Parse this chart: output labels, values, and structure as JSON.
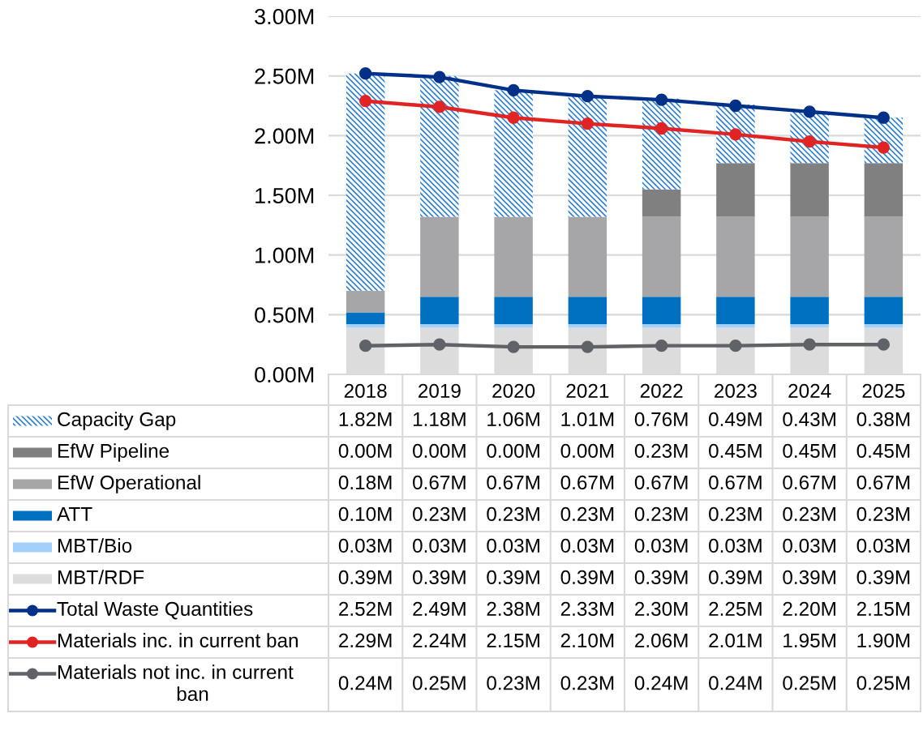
{
  "chart_data": {
    "type": "bar",
    "stacked": true,
    "categories": [
      "2018",
      "2019",
      "2020",
      "2021",
      "2022",
      "2023",
      "2024",
      "2025"
    ],
    "ylim": [
      0,
      3
    ],
    "yticks": [
      {
        "value": 0,
        "label": "0.00M"
      },
      {
        "value": 0.5,
        "label": "0.50M"
      },
      {
        "value": 1,
        "label": "1.00M"
      },
      {
        "value": 1.5,
        "label": "1.50M"
      },
      {
        "value": 2,
        "label": "2.00M"
      },
      {
        "value": 2.5,
        "label": "2.50M"
      },
      {
        "value": 3,
        "label": "3.00M"
      }
    ],
    "grid": "y",
    "legend": "bottom",
    "marker": "circle",
    "line_style": "solid",
    "series": [
      {
        "name": "MBT/RDF",
        "color": "#dcdcdc",
        "values": [
          0.39,
          0.39,
          0.39,
          0.39,
          0.39,
          0.39,
          0.39,
          0.39
        ],
        "value_labels": [
          "0.39M",
          "0.39M",
          "0.39M",
          "0.39M",
          "0.39M",
          "0.39M",
          "0.39M",
          "0.39M"
        ]
      },
      {
        "name": "MBT/Bio",
        "color": "#a2d0fb",
        "values": [
          0.03,
          0.03,
          0.03,
          0.03,
          0.03,
          0.03,
          0.03,
          0.03
        ],
        "value_labels": [
          "0.03M",
          "0.03M",
          "0.03M",
          "0.03M",
          "0.03M",
          "0.03M",
          "0.03M",
          "0.03M"
        ]
      },
      {
        "name": "ATT",
        "color": "#0070c0",
        "values": [
          0.1,
          0.23,
          0.23,
          0.23,
          0.23,
          0.23,
          0.23,
          0.23
        ],
        "value_labels": [
          "0.10M",
          "0.23M",
          "0.23M",
          "0.23M",
          "0.23M",
          "0.23M",
          "0.23M",
          "0.23M"
        ]
      },
      {
        "name": "EfW Operational",
        "color": "#a6a6a8",
        "values": [
          0.18,
          0.67,
          0.67,
          0.67,
          0.67,
          0.67,
          0.67,
          0.67
        ],
        "value_labels": [
          "0.18M",
          "0.67M",
          "0.67M",
          "0.67M",
          "0.67M",
          "0.67M",
          "0.67M",
          "0.67M"
        ]
      },
      {
        "name": "EfW Pipeline",
        "color": "#808080",
        "values": [
          0.0,
          0.0,
          0.0,
          0.0,
          0.23,
          0.45,
          0.45,
          0.45
        ],
        "value_labels": [
          "0.00M",
          "0.00M",
          "0.00M",
          "0.00M",
          "0.23M",
          "0.45M",
          "0.45M",
          "0.45M"
        ]
      },
      {
        "name": "Capacity Gap",
        "color": "#2f7fd0",
        "values": [
          1.82,
          1.18,
          1.06,
          1.01,
          0.76,
          0.49,
          0.43,
          0.38
        ],
        "value_labels": [
          "1.82M",
          "1.18M",
          "1.06M",
          "1.01M",
          "0.76M",
          "0.49M",
          "0.43M",
          "0.38M"
        ]
      },
      {
        "name": "Total Waste Quantities",
        "type": "line",
        "color": "#003087",
        "values": [
          2.52,
          2.49,
          2.38,
          2.33,
          2.3,
          2.25,
          2.2,
          2.15
        ],
        "value_labels": [
          "2.52M",
          "2.49M",
          "2.38M",
          "2.33M",
          "2.30M",
          "2.25M",
          "2.20M",
          "2.15M"
        ]
      },
      {
        "name": "Materials inc. in current ban",
        "type": "line",
        "color": "#e02424",
        "values": [
          2.29,
          2.24,
          2.15,
          2.1,
          2.06,
          2.01,
          1.95,
          1.9
        ],
        "value_labels": [
          "2.29M",
          "2.24M",
          "2.15M",
          "2.10M",
          "2.06M",
          "2.01M",
          "1.95M",
          "1.90M"
        ]
      },
      {
        "name": "Materials not inc. in current ban",
        "type": "line",
        "color": "#5f6368",
        "values": [
          0.24,
          0.25,
          0.23,
          0.23,
          0.24,
          0.24,
          0.25,
          0.25
        ],
        "value_labels": [
          "0.24M",
          "0.25M",
          "0.23M",
          "0.23M",
          "0.24M",
          "0.24M",
          "0.25M",
          "0.25M"
        ]
      }
    ]
  }
}
